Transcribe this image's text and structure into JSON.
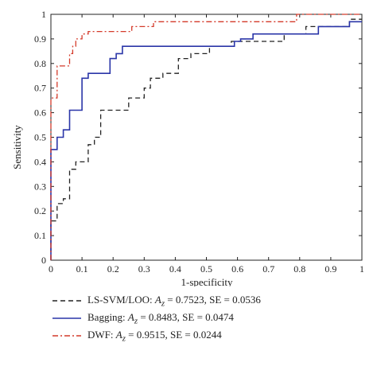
{
  "chart_data": {
    "type": "line",
    "xlabel": "1-specificity",
    "ylabel": "Sensitivity",
    "xlim": [
      0,
      1
    ],
    "ylim": [
      0,
      1
    ],
    "xticks": [
      "0",
      "0.1",
      "0.2",
      "0.3",
      "0.4",
      "0.5",
      "0.6",
      "0.7",
      "0.8",
      "0.9",
      "1"
    ],
    "yticks": [
      "0",
      "0.1",
      "0.2",
      "0.3",
      "0.4",
      "0.5",
      "0.6",
      "0.7",
      "0.8",
      "0.9",
      "1"
    ],
    "grid": false,
    "legend_position": "below",
    "series": [
      {
        "name": "LS-SVM/LOO: A_z = 0.7523, SE = 0.0536",
        "legend_prefix": "LS-SVM/LOO: ",
        "legend_suffix": " = 0.7523, SE = 0.0536",
        "color": "#222222",
        "style": "dashed",
        "x": [
          0,
          0,
          0.02,
          0.02,
          0.04,
          0.04,
          0.06,
          0.06,
          0.08,
          0.08,
          0.12,
          0.12,
          0.14,
          0.14,
          0.16,
          0.16,
          0.25,
          0.25,
          0.3,
          0.3,
          0.32,
          0.32,
          0.36,
          0.36,
          0.41,
          0.41,
          0.45,
          0.45,
          0.51,
          0.51,
          0.58,
          0.58,
          0.75,
          0.75,
          0.82,
          0.82,
          0.96,
          0.96,
          1.0
        ],
        "y": [
          0,
          0.16,
          0.16,
          0.23,
          0.23,
          0.25,
          0.25,
          0.37,
          0.37,
          0.4,
          0.4,
          0.47,
          0.47,
          0.5,
          0.5,
          0.61,
          0.61,
          0.66,
          0.66,
          0.7,
          0.7,
          0.74,
          0.74,
          0.76,
          0.76,
          0.82,
          0.82,
          0.84,
          0.84,
          0.87,
          0.87,
          0.89,
          0.89,
          0.92,
          0.92,
          0.95,
          0.95,
          0.98,
          0.98
        ]
      },
      {
        "name": "Bagging: A_z = 0.8483, SE = 0.0474",
        "legend_prefix": "Bagging: ",
        "legend_suffix": " = 0.8483, SE = 0.0474",
        "color": "#2a35a8",
        "style": "solid",
        "x": [
          0,
          0,
          0.02,
          0.02,
          0.04,
          0.04,
          0.06,
          0.06,
          0.1,
          0.1,
          0.12,
          0.12,
          0.19,
          0.19,
          0.21,
          0.21,
          0.23,
          0.23,
          0.59,
          0.59,
          0.61,
          0.61,
          0.65,
          0.65,
          0.86,
          0.86,
          0.96,
          0.96,
          0.98,
          0.98,
          1.0
        ],
        "y": [
          0,
          0.45,
          0.45,
          0.5,
          0.5,
          0.53,
          0.53,
          0.61,
          0.61,
          0.74,
          0.74,
          0.76,
          0.76,
          0.82,
          0.82,
          0.84,
          0.84,
          0.87,
          0.87,
          0.89,
          0.89,
          0.9,
          0.9,
          0.92,
          0.92,
          0.95,
          0.95,
          0.97,
          0.97,
          0.97,
          0.97
        ]
      },
      {
        "name": "DWF: A_z = 0.9515, SE = 0.0244",
        "legend_prefix": "DWF: ",
        "legend_suffix": " = 0.9515, SE = 0.0244",
        "color": "#d43a2a",
        "style": "dashdot",
        "x": [
          0,
          0,
          0.02,
          0.02,
          0.06,
          0.06,
          0.07,
          0.07,
          0.08,
          0.08,
          0.1,
          0.1,
          0.12,
          0.12,
          0.26,
          0.26,
          0.33,
          0.33,
          0.79,
          0.79,
          1.0
        ],
        "y": [
          0,
          0.66,
          0.66,
          0.79,
          0.79,
          0.84,
          0.84,
          0.87,
          0.87,
          0.9,
          0.9,
          0.92,
          0.92,
          0.93,
          0.93,
          0.95,
          0.95,
          0.97,
          0.97,
          1.0,
          1.0
        ]
      }
    ]
  }
}
